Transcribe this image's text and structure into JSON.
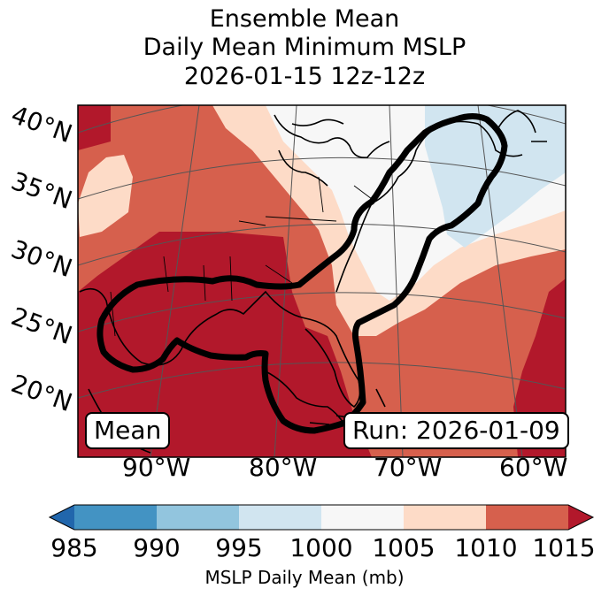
{
  "title": {
    "line1": "Ensemble Mean",
    "line2": "Daily Mean Minimum MSLP",
    "line3": "2026-01-15 12z-12z"
  },
  "map": {
    "latitude_labels": [
      "40°N",
      "35°N",
      "30°N",
      "25°N",
      "20°N"
    ],
    "longitude_labels": [
      "90°W",
      "80°W",
      "70°W",
      "60°W"
    ],
    "mean_label": "Mean",
    "run_label": "Run: 2026-01-09",
    "contour_color": "#000000",
    "coastline_color": "#000000"
  },
  "colorbar": {
    "label": "MSLP Daily Mean (mb)",
    "ticks": [
      "985",
      "990",
      "995",
      "1000",
      "1005",
      "1010",
      "1015"
    ],
    "colors": [
      "#2166ac",
      "#4393c3",
      "#92c5de",
      "#d1e5f0",
      "#f7f7f7",
      "#fddbc7",
      "#d6604d",
      "#b2182b"
    ]
  }
}
